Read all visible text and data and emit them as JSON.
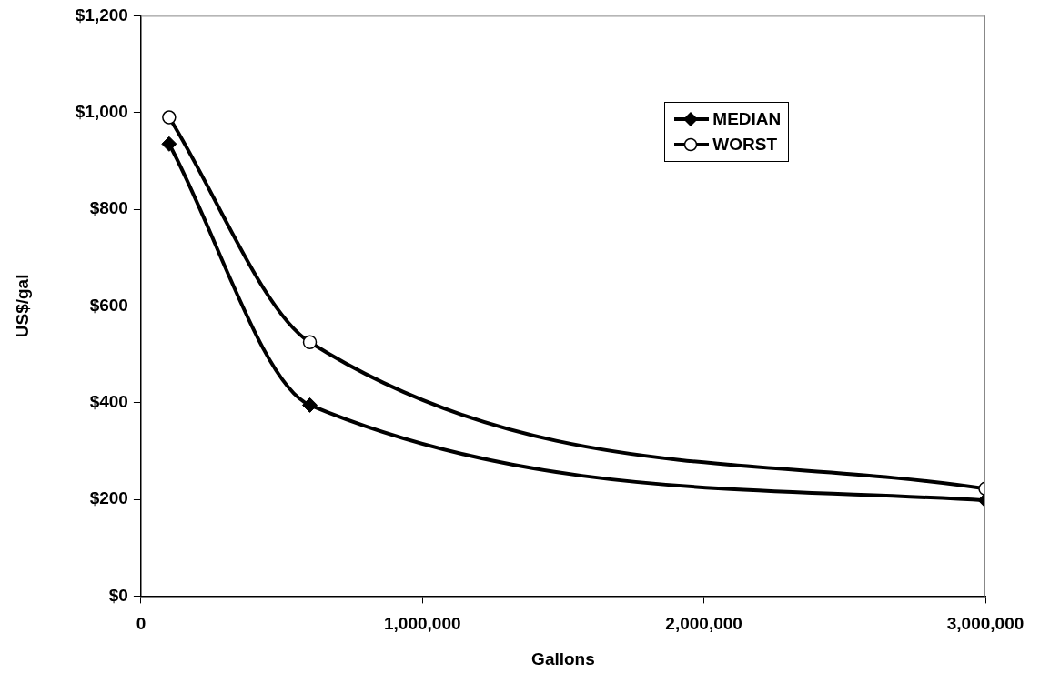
{
  "chart_data": {
    "type": "line",
    "xlabel": "Gallons",
    "ylabel": "US$/gal",
    "x": [
      100000,
      600000,
      3000000
    ],
    "series": [
      {
        "name": "MEDIAN",
        "color": "#000000",
        "marker": "diamond",
        "values": [
          935,
          395,
          198
        ]
      },
      {
        "name": "WORST",
        "color": "#000000",
        "marker": "circle",
        "values": [
          990,
          525,
          222
        ]
      }
    ],
    "xlim": [
      0,
      3000000
    ],
    "xticks": [
      0,
      {
        "value": 1000000,
        "label": "1,000,000"
      },
      {
        "value": 2000000,
        "label": "2,000,000"
      },
      {
        "value": 3000000,
        "label": "3,000,000"
      }
    ],
    "ylim": [
      0,
      1200
    ],
    "yticks": [
      {
        "value": 0,
        "label": "$0"
      },
      {
        "value": 200,
        "label": "$200"
      },
      {
        "value": 400,
        "label": "$400"
      },
      {
        "value": 600,
        "label": "$600"
      },
      {
        "value": 800,
        "label": "$800"
      },
      {
        "value": 1000,
        "label": "$1,000"
      },
      {
        "value": 1200,
        "label": "$1,200"
      }
    ],
    "grid": false,
    "legend": "top right",
    "line_style": "solid"
  }
}
